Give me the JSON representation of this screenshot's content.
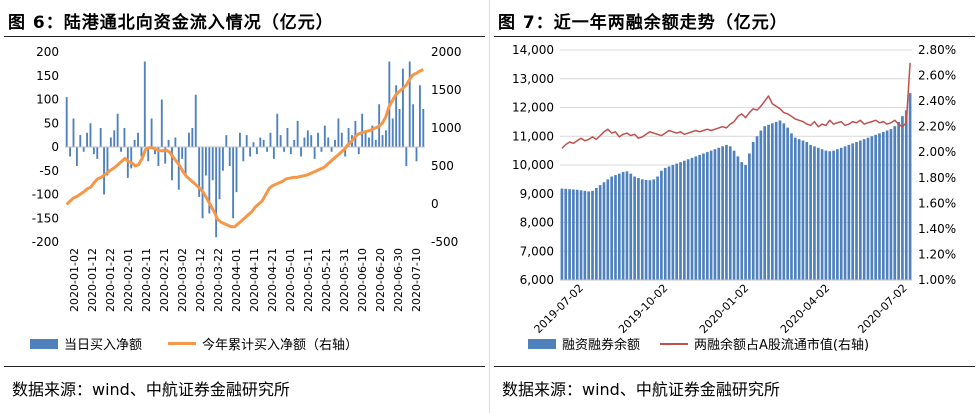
{
  "panel1": {
    "title": "图 6：陆港通北向资金流入情况（亿元）",
    "source": "数据来源：wind、中航证券金融研究所",
    "legend": [
      "当日买入净额",
      "今年累计买入净额（右轴）"
    ]
  },
  "panel2": {
    "title": "图 7：近一年两融余额走势（亿元）",
    "source": "数据来源：wind、中航证券金融研究所",
    "legend": [
      "融资融券余额",
      "两融余额占A股流通市值(右轴)"
    ]
  },
  "colors": {
    "bar": "#4f81bd",
    "cum_line": "#f79646",
    "ratio_line": "#c0504d",
    "grid": "#d9d9d9"
  },
  "chart_data": [
    {
      "type": "bar",
      "ylim": [
        -200,
        200
      ],
      "yticks": [
        -200,
        -150,
        -100,
        -50,
        0,
        50,
        100,
        150,
        200
      ],
      "y2lim": [
        -500,
        2000
      ],
      "y2ticks": [
        -500,
        0,
        500,
        1000,
        1500,
        2000
      ],
      "xtick_labels": [
        "2020-01-02",
        "2020-01-12",
        "2020-01-22",
        "2020-02-01",
        "2020-02-11",
        "2020-02-21",
        "2020-03-02",
        "2020-03-12",
        "2020-03-22",
        "2020-04-01",
        "2020-04-11",
        "2020-04-21",
        "2020-05-01",
        "2020-05-11",
        "2020-05-21",
        "2020-05-31",
        "2020-06-10",
        "2020-06-20",
        "2020-06-30",
        "2020-07-10"
      ],
      "series": [
        {
          "name": "当日买入净额",
          "type": "bar",
          "values": [
            105,
            -20,
            60,
            -40,
            25,
            -10,
            30,
            50,
            -15,
            -25,
            40,
            -100,
            -60,
            20,
            35,
            70,
            -10,
            40,
            -65,
            -45,
            15,
            30,
            -20,
            180,
            -30,
            60,
            -15,
            -40,
            100,
            -35,
            15,
            -70,
            20,
            -90,
            -25,
            -60,
            30,
            40,
            110,
            -105,
            -150,
            -60,
            -140,
            -70,
            -190,
            -110,
            -50,
            25,
            -40,
            -150,
            -95,
            30,
            -30,
            25,
            -20,
            10,
            -15,
            20,
            15,
            -10,
            30,
            -25,
            70,
            25,
            -10,
            40,
            -15,
            15,
            55,
            -20,
            20,
            35,
            25,
            -25,
            30,
            -10,
            45,
            20,
            -10,
            15,
            60,
            30,
            -20,
            40,
            25,
            55,
            -15,
            70,
            30,
            20,
            45,
            15,
            90,
            25,
            35,
            180,
            60,
            130,
            80,
            165,
            -40,
            180,
            90,
            -30,
            130,
            80
          ]
        },
        {
          "name": "今年累计买入净额（右轴）",
          "type": "line",
          "axis": "right",
          "values": [
            -5,
            40,
            80,
            100,
            130,
            160,
            200,
            220,
            280,
            330,
            350,
            380,
            420,
            450,
            480,
            520,
            560,
            600,
            560,
            540,
            500,
            520,
            600,
            720,
            740,
            740,
            720,
            700,
            700,
            710,
            680,
            620,
            560,
            500,
            420,
            360,
            320,
            280,
            240,
            200,
            140,
            60,
            -20,
            -100,
            -200,
            -240,
            -260,
            -280,
            -300,
            -300,
            -260,
            -220,
            -180,
            -140,
            -100,
            -40,
            0,
            40,
            120,
            200,
            240,
            260,
            280,
            300,
            330,
            340,
            350,
            350,
            360,
            370,
            380,
            400,
            420,
            440,
            460,
            480,
            520,
            560,
            600,
            640,
            680,
            720,
            780,
            820,
            880,
            920,
            940,
            950,
            960,
            980,
            1000,
            1020,
            1060,
            1140,
            1280,
            1360,
            1440,
            1480,
            1520,
            1560,
            1640,
            1700,
            1720,
            1750,
            1770
          ]
        }
      ]
    },
    {
      "type": "bar",
      "ylim": [
        6000,
        14000
      ],
      "yticks": [
        6000,
        7000,
        8000,
        9000,
        10000,
        11000,
        12000,
        13000,
        14000
      ],
      "ytick_labels": [
        "6,000",
        "7,000",
        "8,000",
        "9,000",
        "10,000",
        "11,000",
        "12,000",
        "13,000",
        "14,000"
      ],
      "y2lim": [
        1.0,
        2.8
      ],
      "y2ticks": [
        1.0,
        1.2,
        1.4,
        1.6,
        1.8,
        2.0,
        2.2,
        2.4,
        2.6,
        2.8
      ],
      "y2tick_labels": [
        "1.00%",
        "1.20%",
        "1.40%",
        "1.60%",
        "1.80%",
        "2.00%",
        "2.20%",
        "2.40%",
        "2.60%",
        "2.80%"
      ],
      "xtick_labels": [
        "2019-07-02",
        "2019-10-02",
        "2020-01-02",
        "2020-04-02",
        "2020-07-02"
      ],
      "series": [
        {
          "name": "融资融券余额",
          "type": "bar",
          "values": [
            9180,
            9170,
            9160,
            9150,
            9140,
            9120,
            9100,
            9080,
            9100,
            9200,
            9300,
            9400,
            9500,
            9600,
            9650,
            9700,
            9760,
            9780,
            9700,
            9600,
            9550,
            9500,
            9480,
            9470,
            9500,
            9600,
            9800,
            9900,
            9950,
            10000,
            10050,
            10100,
            10150,
            10200,
            10250,
            10300,
            10350,
            10400,
            10450,
            10500,
            10550,
            10600,
            10650,
            10700,
            10650,
            10500,
            10300,
            10100,
            10000,
            10400,
            10800,
            11000,
            11200,
            11350,
            11400,
            11450,
            11500,
            11550,
            11450,
            11300,
            11100,
            10950,
            10900,
            10850,
            10800,
            10700,
            10650,
            10600,
            10550,
            10500,
            10480,
            10500,
            10550,
            10600,
            10650,
            10700,
            10750,
            10800,
            10850,
            10900,
            10950,
            11000,
            11050,
            11100,
            11150,
            11200,
            11250,
            11350,
            11500,
            11700,
            11900,
            12500
          ]
        },
        {
          "name": "两融余额占A股流通市值(右轴)",
          "type": "line",
          "axis": "right",
          "values": [
            2.03,
            2.06,
            2.08,
            2.07,
            2.09,
            2.11,
            2.09,
            2.1,
            2.12,
            2.1,
            2.13,
            2.16,
            2.18,
            2.15,
            2.16,
            2.12,
            2.14,
            2.15,
            2.13,
            2.14,
            2.11,
            2.12,
            2.14,
            2.16,
            2.15,
            2.14,
            2.13,
            2.15,
            2.17,
            2.16,
            2.15,
            2.16,
            2.14,
            2.15,
            2.16,
            2.17,
            2.16,
            2.17,
            2.18,
            2.17,
            2.18,
            2.19,
            2.2,
            2.19,
            2.22,
            2.24,
            2.28,
            2.3,
            2.27,
            2.31,
            2.34,
            2.33,
            2.36,
            2.4,
            2.44,
            2.38,
            2.36,
            2.34,
            2.31,
            2.3,
            2.28,
            2.26,
            2.25,
            2.24,
            2.22,
            2.21,
            2.24,
            2.2,
            2.22,
            2.21,
            2.25,
            2.22,
            2.23,
            2.24,
            2.21,
            2.22,
            2.24,
            2.23,
            2.25,
            2.22,
            2.23,
            2.24,
            2.25,
            2.23,
            2.24,
            2.22,
            2.23,
            2.25,
            2.22,
            2.2,
            2.23,
            2.7
          ]
        }
      ]
    }
  ]
}
